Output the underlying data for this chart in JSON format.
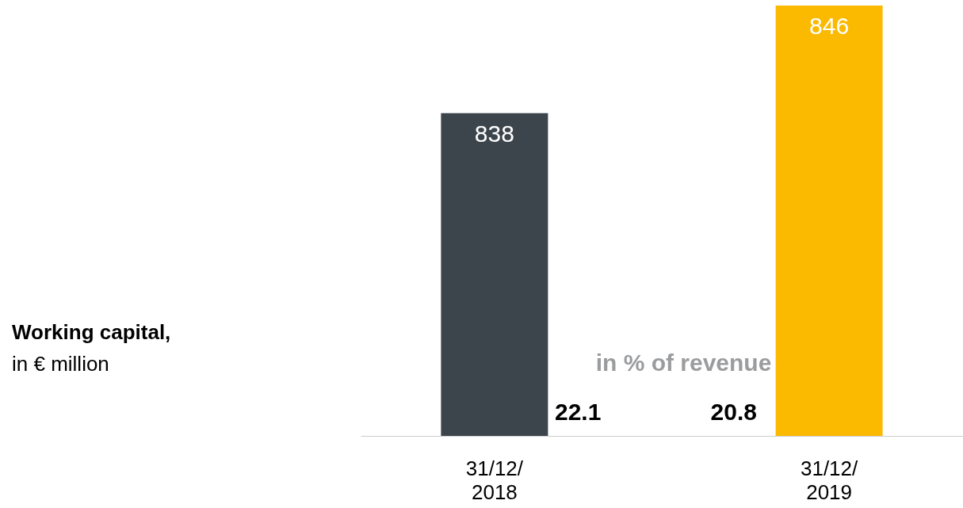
{
  "chart_data": {
    "type": "bar",
    "title": "Working capital,",
    "subtitle": "in € million",
    "categories": [
      "31/12/\n2018",
      "31/12/\n2019"
    ],
    "values": [
      838,
      846
    ],
    "colors": [
      "#3d454c",
      "#fbb900"
    ],
    "ylim": [
      814,
      846
    ],
    "tick_labels": "x",
    "data_labels": true,
    "grid": false,
    "annotations": [
      "in % of revenue",
      "22.1",
      "20.8"
    ]
  }
}
